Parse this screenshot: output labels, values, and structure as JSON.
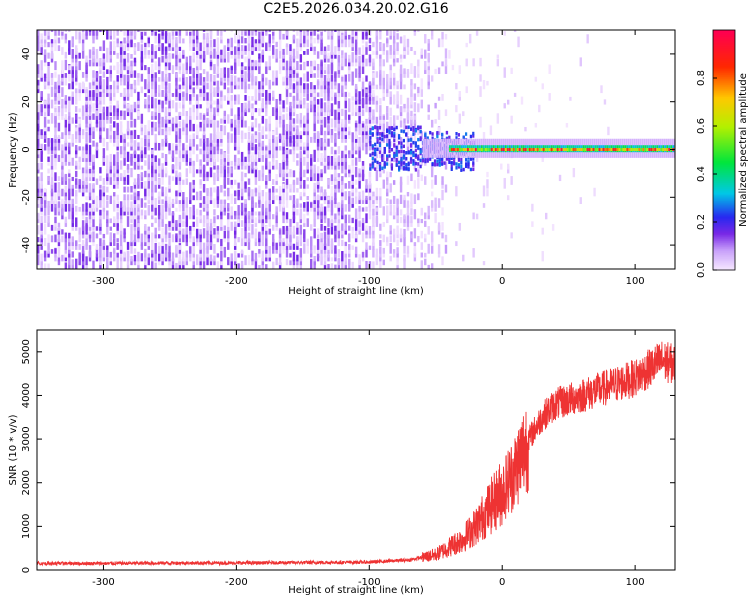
{
  "title": "C2E5.2026.034.20.02.G16",
  "chart_data": [
    {
      "type": "heatmap",
      "title": "C2E5.2026.034.20.02.G16",
      "xlabel": "Height of straight line (km)",
      "ylabel": "Frequency (Hz)",
      "xlim": [
        -350,
        130
      ],
      "ylim": [
        -50,
        50
      ],
      "xticks": [
        -300,
        -200,
        -100,
        0,
        100
      ],
      "yticks": [
        -40,
        -20,
        0,
        20,
        40
      ],
      "colorbar": {
        "label": "Normalized spectral amplitude",
        "range": [
          0,
          1
        ],
        "ticks": [
          0.0,
          0.2,
          0.4,
          0.6,
          0.8
        ],
        "tick_labels": [
          "0.0",
          "0.2",
          "0.4",
          "0.6",
          "0.8"
        ],
        "colormap": "rainbow"
      },
      "regions": [
        {
          "name": "noise",
          "x": [
            -350,
            -100
          ],
          "y": [
            -50,
            50
          ],
          "amplitude": [
            0.0,
            0.15
          ]
        },
        {
          "name": "noise-fading",
          "x": [
            -100,
            -40
          ],
          "y": [
            -50,
            50
          ],
          "amplitude": [
            0.0,
            0.08
          ]
        },
        {
          "name": "signal-onset",
          "x": [
            -100,
            -25
          ],
          "y": [
            -14,
            10
          ],
          "amplitude": [
            0.1,
            0.3
          ]
        },
        {
          "name": "signal-tone",
          "x": [
            -25,
            130
          ],
          "y": [
            -2,
            3
          ],
          "amplitude": [
            0.5,
            0.95
          ]
        }
      ]
    },
    {
      "type": "line",
      "xlabel": "Height of straight line (km)",
      "ylabel": "SNR (10 * v/v)",
      "xlim": [
        -350,
        130
      ],
      "ylim": [
        0,
        5500
      ],
      "xticks": [
        -300,
        -200,
        -100,
        0,
        100
      ],
      "yticks": [
        0,
        1000,
        2000,
        3000,
        4000,
        5000
      ],
      "series": [
        {
          "name": "SNR",
          "color": "#ee3333",
          "x": [
            -350,
            -300,
            -250,
            -200,
            -150,
            -100,
            -70,
            -50,
            -30,
            -20,
            -10,
            0,
            10,
            20,
            30,
            40,
            60,
            80,
            100,
            120,
            130
          ],
          "values": [
            150,
            150,
            160,
            160,
            170,
            180,
            230,
            350,
            700,
            1000,
            1400,
            1800,
            2300,
            3000,
            3500,
            3800,
            4000,
            4200,
            4400,
            4800,
            4700
          ]
        }
      ]
    }
  ]
}
